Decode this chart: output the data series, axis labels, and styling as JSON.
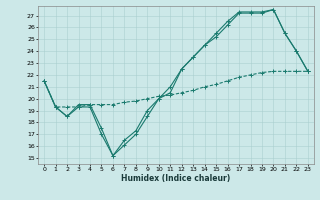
{
  "xlabel": "Humidex (Indice chaleur)",
  "ylabel": "",
  "bg_color": "#cce8e8",
  "grid_color": "#aacfcf",
  "line_color": "#1a7a6e",
  "ylim": [
    14.5,
    27.8
  ],
  "xlim": [
    -0.5,
    23.5
  ],
  "yticks": [
    15,
    16,
    17,
    18,
    19,
    20,
    21,
    22,
    23,
    24,
    25,
    26,
    27
  ],
  "xticks": [
    0,
    1,
    2,
    3,
    4,
    5,
    6,
    7,
    8,
    9,
    10,
    11,
    12,
    13,
    14,
    15,
    16,
    17,
    18,
    19,
    20,
    21,
    22,
    23
  ],
  "series1": {
    "x": [
      0,
      1,
      2,
      3,
      4,
      5,
      6,
      7,
      8,
      9,
      10,
      11,
      12,
      13,
      14,
      15,
      16,
      17,
      18,
      19,
      20,
      21,
      22,
      23
    ],
    "y": [
      21.5,
      19.3,
      18.5,
      19.3,
      19.3,
      17.0,
      15.2,
      16.1,
      17.0,
      18.5,
      20.0,
      20.5,
      22.5,
      23.5,
      24.5,
      25.2,
      26.2,
      27.2,
      27.2,
      27.2,
      27.5,
      25.5,
      24.0,
      22.3
    ]
  },
  "series2": {
    "x": [
      0,
      1,
      2,
      3,
      4,
      5,
      6,
      7,
      8,
      9,
      10,
      11,
      12,
      13,
      14,
      15,
      16,
      17,
      18,
      19,
      20,
      21,
      22,
      23
    ],
    "y": [
      21.5,
      19.3,
      18.5,
      19.5,
      19.5,
      17.5,
      15.2,
      16.5,
      17.3,
      19.0,
      20.0,
      21.0,
      22.5,
      23.5,
      24.5,
      25.5,
      26.5,
      27.3,
      27.3,
      27.3,
      27.5,
      25.5,
      24.0,
      22.3
    ]
  },
  "series3": {
    "x": [
      0,
      1,
      2,
      3,
      4,
      5,
      6,
      7,
      8,
      9,
      10,
      11,
      12,
      13,
      14,
      15,
      16,
      17,
      18,
      19,
      20,
      21,
      22,
      23
    ],
    "y": [
      21.5,
      19.3,
      19.3,
      19.3,
      19.5,
      19.5,
      19.5,
      19.7,
      19.8,
      20.0,
      20.2,
      20.3,
      20.5,
      20.7,
      21.0,
      21.2,
      21.5,
      21.8,
      22.0,
      22.2,
      22.3,
      22.3,
      22.3,
      22.3
    ]
  }
}
